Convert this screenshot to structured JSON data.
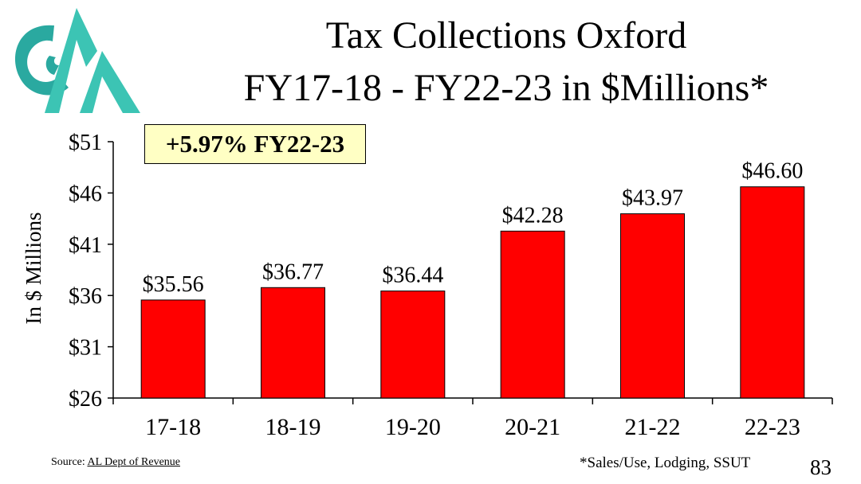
{
  "slide": {
    "title_line1": "Tax Collections Oxford",
    "title_line2": "FY17-18 - FY22-23 in $Millions*",
    "callout": "+5.97% FY22-23",
    "source_prefix": "Source: ",
    "source_link": "AL Dept of Revenue",
    "footnote": "*Sales/Use, Lodging, SSUT",
    "page_number": "83"
  },
  "logo": {
    "colors": [
      "#2aa9a0",
      "#3cc4b4"
    ]
  },
  "chart_data": {
    "type": "bar",
    "title": "Tax Collections Oxford FY17-18 - FY22-23 in $Millions*",
    "xlabel": "",
    "ylabel": "In $ Millions",
    "categories": [
      "17-18",
      "18-19",
      "19-20",
      "20-21",
      "21-22",
      "22-23"
    ],
    "values": [
      35.56,
      36.77,
      36.44,
      42.28,
      43.97,
      46.6
    ],
    "data_labels": [
      "$35.56",
      "$36.77",
      "$36.44",
      "$42.28",
      "$43.97",
      "$46.60"
    ],
    "y_ticks": [
      26,
      31,
      36,
      41,
      46,
      51
    ],
    "y_tick_labels": [
      "$26",
      "$31",
      "$36",
      "$41",
      "$46",
      "$51"
    ],
    "ylim": [
      26,
      51
    ],
    "bar_color": "#ff0000",
    "grid": false,
    "legend": "none"
  }
}
